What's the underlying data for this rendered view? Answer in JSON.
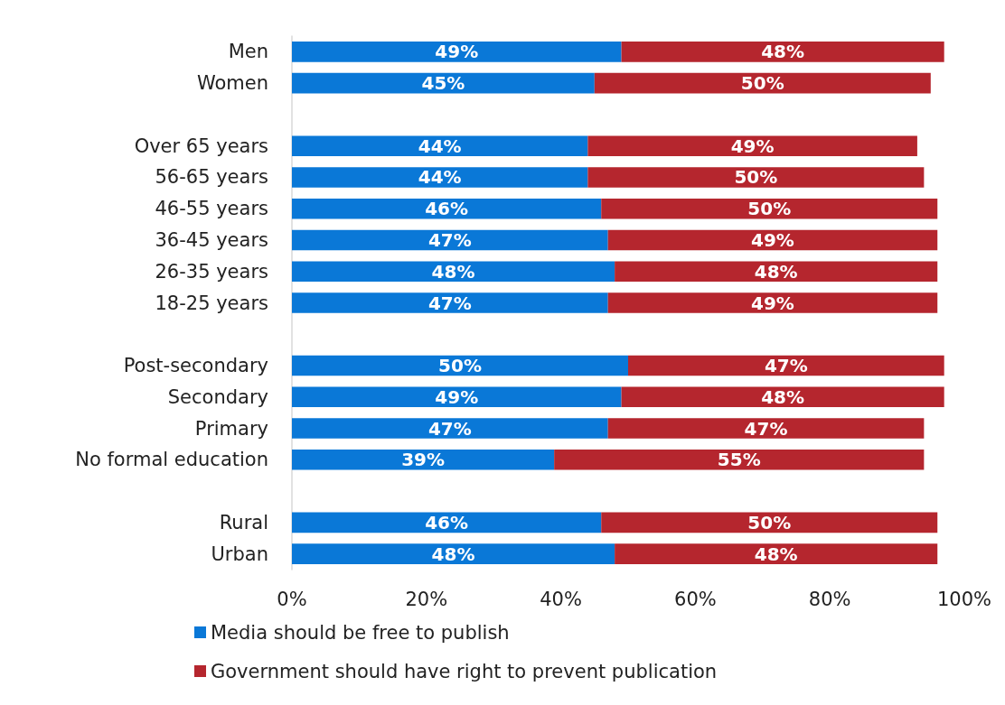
{
  "chart_data": {
    "type": "bar",
    "orientation": "horizontal",
    "stacked": true,
    "categories": [
      "Men",
      "Women",
      null,
      "Over 65 years",
      "56-65 years",
      "46-55 years",
      "36-45 years",
      "26-35 years",
      "18-25 years",
      null,
      "Post-secondary",
      "Secondary",
      "Primary",
      "No formal education",
      null,
      "Rural",
      "Urban"
    ],
    "series": [
      {
        "name": "Media should be free to publish",
        "color": "#0a78d7",
        "values": [
          49,
          45,
          null,
          44,
          44,
          46,
          47,
          48,
          47,
          null,
          50,
          49,
          47,
          39,
          null,
          46,
          48
        ],
        "value_labels": [
          "49%",
          "45%",
          null,
          "44%",
          "44%",
          "46%",
          "47%",
          "48%",
          "47%",
          null,
          "50%",
          "49%",
          "47%",
          "39%",
          null,
          "46%",
          "48%"
        ]
      },
      {
        "name": "Government should have right to prevent publication",
        "color": "#b5262e",
        "values": [
          48,
          50,
          null,
          49,
          50,
          50,
          49,
          48,
          49,
          null,
          47,
          48,
          47,
          55,
          null,
          50,
          48
        ],
        "value_labels": [
          "48%",
          "50%",
          null,
          "49%",
          "50%",
          "50%",
          "49%",
          "48%",
          "49%",
          null,
          "47%",
          "48%",
          "47%",
          "55%",
          null,
          "50%",
          "48%"
        ]
      }
    ],
    "xlim": [
      0,
      100
    ],
    "xticks": [
      {
        "value": 0,
        "label": "0%"
      },
      {
        "value": 20,
        "label": "20%"
      },
      {
        "value": 40,
        "label": "40%"
      },
      {
        "value": 60,
        "label": "60%"
      },
      {
        "value": 80,
        "label": "80%"
      },
      {
        "value": 100,
        "label": "100%"
      }
    ],
    "grid": false,
    "legend": "bottom left"
  }
}
